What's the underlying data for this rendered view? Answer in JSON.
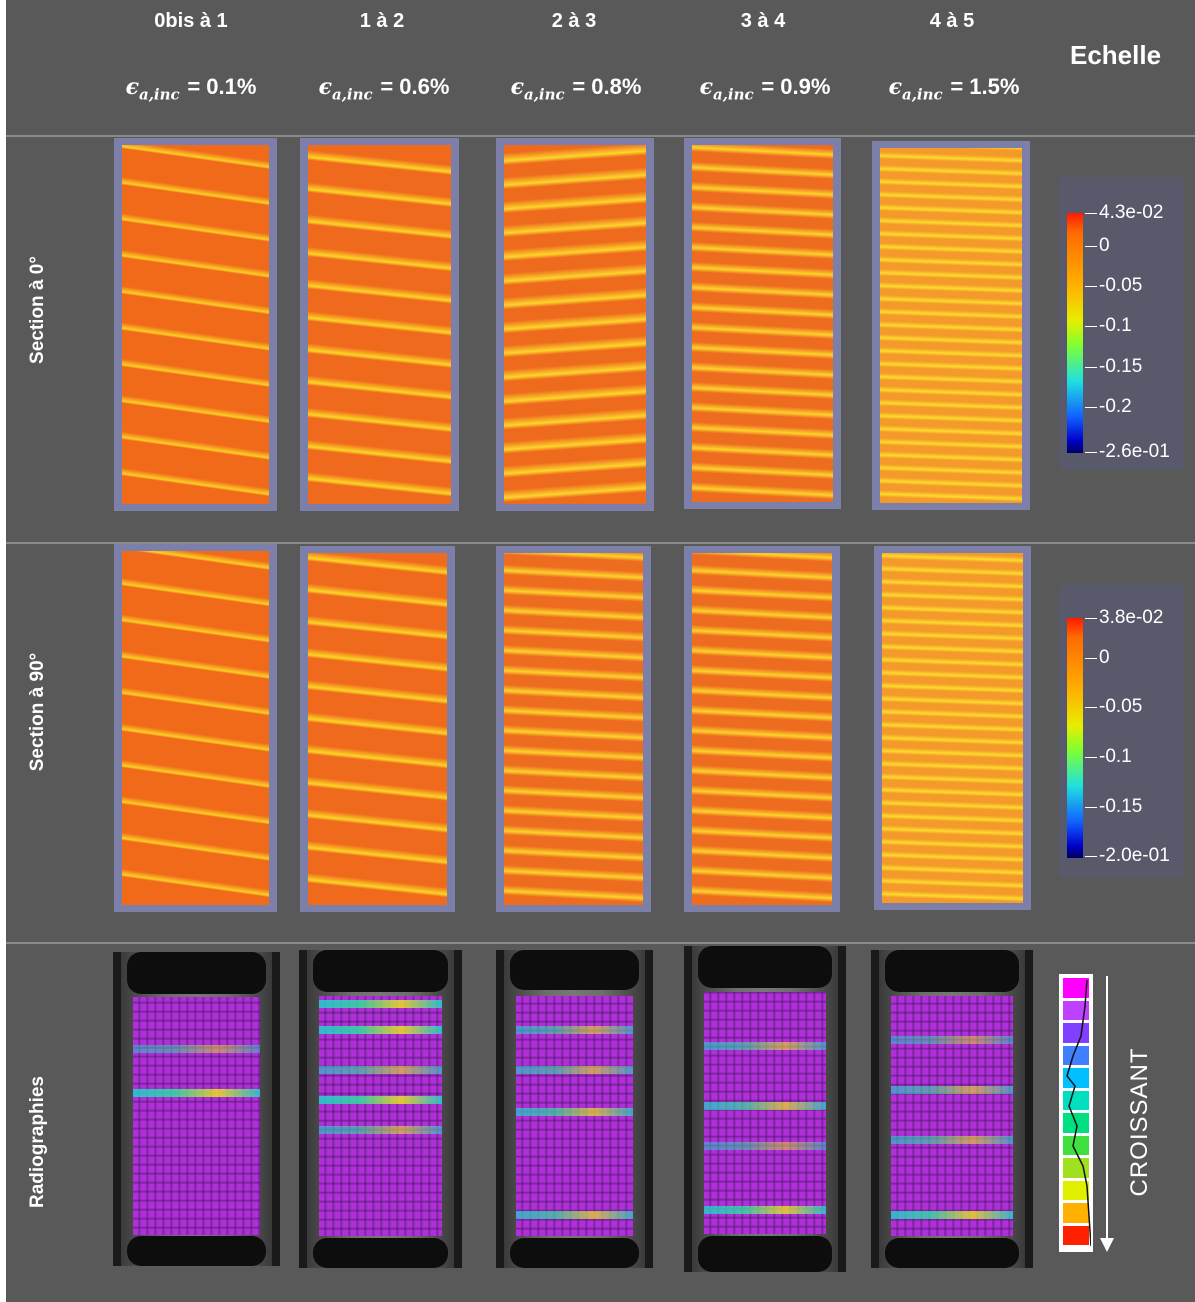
{
  "columns": [
    {
      "title": "0bis à 1",
      "eps_symbol": "ϵ",
      "eps_sub": "a,inc",
      "eps_value": "= 0.1%"
    },
    {
      "title": "1 à 2",
      "eps_symbol": "ϵ",
      "eps_sub": "a,inc",
      "eps_value": "= 0.6%"
    },
    {
      "title": "2 à 3",
      "eps_symbol": "ϵ",
      "eps_sub": "a,inc",
      "eps_value": "= 0.8%"
    },
    {
      "title": "3 à 4",
      "eps_symbol": "ϵ",
      "eps_sub": "a,inc",
      "eps_value": "= 0.9%"
    },
    {
      "title": "4 à 5",
      "eps_symbol": "ϵ",
      "eps_sub": "a,inc",
      "eps_value": "= 1.5%"
    }
  ],
  "scale_header": "Echelle",
  "rows": {
    "section0": "Section à 0°",
    "section90": "Section à 90°",
    "radio": "Radiographies"
  },
  "legend0": {
    "labels": [
      "4.3e-02",
      "0",
      "-0.05",
      "-0.1",
      "-0.15",
      "-0.2",
      "-2.6e-01"
    ]
  },
  "legend90": {
    "labels": [
      "3.8e-02",
      "0",
      "-0.05",
      "-0.1",
      "-0.15",
      "-2.0e-01"
    ]
  },
  "radio_scale": {
    "label": "CROISSANT",
    "colors": [
      "#ff00ff",
      "#c040ff",
      "#8040ff",
      "#4080ff",
      "#00c0ff",
      "#00e0c0",
      "#00e080",
      "#40e040",
      "#a0e020",
      "#e0f000",
      "#ffb000",
      "#ff2000"
    ]
  }
}
